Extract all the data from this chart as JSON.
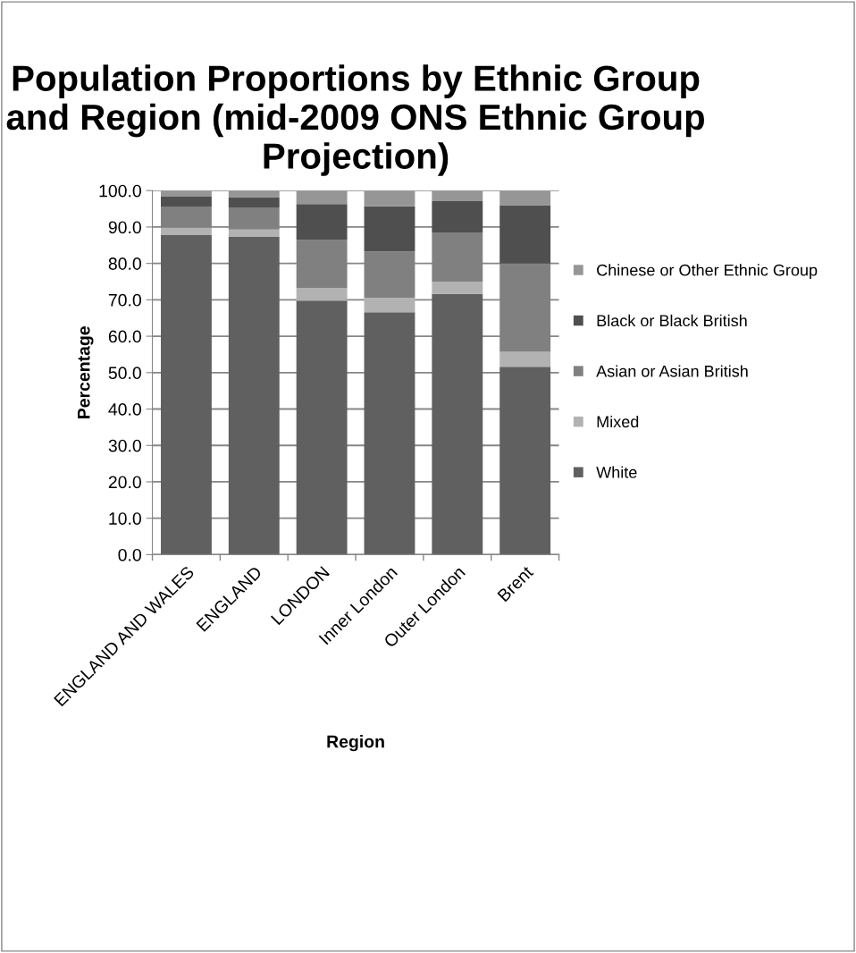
{
  "chart_data": {
    "type": "bar",
    "stacked": true,
    "title": "Population Proportions by Ethnic Group and Region (mid-2009 ONS Ethnic Group Projection)",
    "xlabel": "Region",
    "ylabel": "Percentage",
    "categories": [
      "ENGLAND AND WALES",
      "ENGLAND",
      "LONDON",
      "Inner London",
      "Outer London",
      "Brent"
    ],
    "series": [
      {
        "name": "White",
        "color": "#606060",
        "values": [
          87.8,
          87.3,
          69.8,
          66.6,
          71.6,
          51.6
        ]
      },
      {
        "name": "Mixed",
        "color": "#b2b2b2",
        "values": [
          2.0,
          2.0,
          3.4,
          4.0,
          3.4,
          4.1
        ]
      },
      {
        "name": "Asian or Asian British",
        "color": "#808080",
        "values": [
          5.8,
          6.1,
          13.2,
          12.7,
          13.5,
          24.3
        ]
      },
      {
        "name": "Black or Black British",
        "color": "#4f4f4f",
        "values": [
          2.7,
          2.8,
          9.9,
          12.4,
          8.6,
          16.0
        ]
      },
      {
        "name": "Chinese or Other Ethnic Group",
        "color": "#969696",
        "values": [
          1.7,
          1.8,
          3.7,
          4.3,
          2.9,
          4.0
        ]
      }
    ],
    "ylim": [
      0,
      100
    ],
    "yticks": [
      {
        "value": 0,
        "label": "0.0"
      },
      {
        "value": 10,
        "label": "10.0"
      },
      {
        "value": 20,
        "label": "20.0"
      },
      {
        "value": 30,
        "label": "30.0"
      },
      {
        "value": 40,
        "label": "40.0"
      },
      {
        "value": 50,
        "label": "50.0"
      },
      {
        "value": 60,
        "label": "60.0"
      },
      {
        "value": 70,
        "label": "70.0"
      },
      {
        "value": 80,
        "label": "80.0"
      },
      {
        "value": 90,
        "label": "90.0"
      },
      {
        "value": 100,
        "label": "100.0"
      }
    ],
    "grid": "y",
    "legend": "right"
  }
}
